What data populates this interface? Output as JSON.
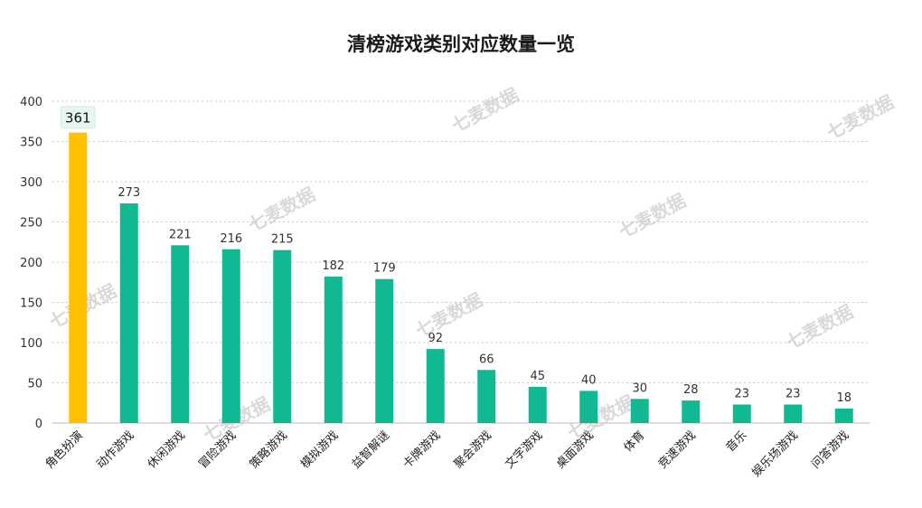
{
  "title": "清榜游戏类别对应数量一览",
  "watermark": "七麦数据",
  "colors": {
    "highlight": "#FFC000",
    "bar": "#10B991",
    "highlight_label_bg": "#E8F6F0"
  },
  "chart_data": {
    "type": "bar",
    "title": "清榜游戏类别对应数量一览",
    "categories": [
      "角色扮演",
      "动作游戏",
      "休闲游戏",
      "冒险游戏",
      "策略游戏",
      "模拟游戏",
      "益智解谜",
      "卡牌游戏",
      "聚会游戏",
      "文字游戏",
      "桌面游戏",
      "体育",
      "竞速游戏",
      "音乐",
      "娱乐场游戏",
      "问答游戏"
    ],
    "values": [
      361,
      273,
      221,
      216,
      215,
      182,
      179,
      92,
      66,
      45,
      40,
      30,
      28,
      23,
      23,
      18
    ],
    "ylim": [
      0,
      400
    ],
    "yticks": [
      0,
      50,
      100,
      150,
      200,
      250,
      300,
      350,
      400
    ],
    "grid": true,
    "highlight_index": 0
  }
}
